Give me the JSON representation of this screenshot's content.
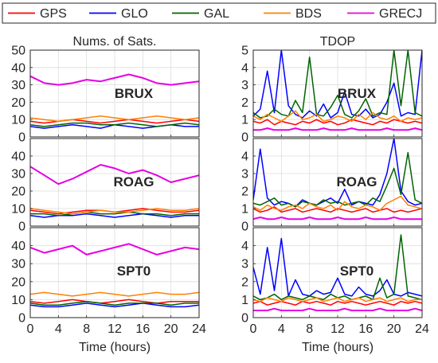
{
  "legend": {
    "items": [
      {
        "label": "GPS",
        "color": "#ff0000"
      },
      {
        "label": "GLO",
        "color": "#0000ff"
      },
      {
        "label": "GAL",
        "color": "#006400"
      },
      {
        "label": "BDS",
        "color": "#ff8000"
      },
      {
        "label": "GRECJ",
        "color": "#e600e6"
      }
    ]
  },
  "chart_data": [
    {
      "type": "line",
      "column": "left",
      "row": 0,
      "title": "Nums. of Sats.",
      "station": "BRUX",
      "xlabel": "",
      "ylabel": "",
      "xlim": [
        0,
        24
      ],
      "ylim": [
        0,
        50
      ],
      "xticks": [
        0,
        4,
        8,
        12,
        16,
        20,
        24
      ],
      "show_xtick_labels": false,
      "yticks": [
        0,
        10,
        20,
        30,
        40,
        50
      ],
      "yticklabels": [
        "0",
        "10",
        "20",
        "30",
        "40",
        "50"
      ],
      "grid": true,
      "x": [
        0,
        2,
        4,
        6,
        8,
        10,
        12,
        14,
        16,
        18,
        20,
        22,
        24
      ],
      "series": [
        {
          "name": "GPS",
          "values": [
            9,
            8,
            9,
            10,
            9,
            8,
            9,
            10,
            9,
            8,
            9,
            10,
            9
          ]
        },
        {
          "name": "GLO",
          "values": [
            6,
            5,
            6,
            7,
            6,
            5,
            7,
            6,
            5,
            6,
            7,
            6,
            6
          ]
        },
        {
          "name": "GAL",
          "values": [
            7,
            6,
            7,
            8,
            8,
            7,
            7,
            8,
            7,
            6,
            7,
            8,
            7
          ]
        },
        {
          "name": "BDS",
          "values": [
            11,
            10,
            9,
            10,
            11,
            12,
            11,
            10,
            11,
            12,
            11,
            10,
            11
          ]
        },
        {
          "name": "GRECJ",
          "values": [
            35,
            31,
            30,
            31,
            33,
            32,
            34,
            36,
            34,
            31,
            30,
            31,
            32
          ]
        }
      ]
    },
    {
      "type": "line",
      "column": "left",
      "row": 1,
      "title": "",
      "station": "ROAG",
      "xlabel": "",
      "ylabel": "",
      "xlim": [
        0,
        24
      ],
      "ylim": [
        0,
        50
      ],
      "xticks": [
        0,
        4,
        8,
        12,
        16,
        20,
        24
      ],
      "show_xtick_labels": false,
      "yticks": [
        0,
        10,
        20,
        30,
        40
      ],
      "yticklabels": [
        "0",
        "10",
        "20",
        "30",
        "40"
      ],
      "grid": true,
      "x": [
        0,
        2,
        4,
        6,
        8,
        10,
        12,
        14,
        16,
        18,
        20,
        22,
        24
      ],
      "series": [
        {
          "name": "GPS",
          "values": [
            9,
            8,
            7,
            8,
            9,
            9,
            8,
            9,
            10,
            9,
            8,
            8,
            9
          ]
        },
        {
          "name": "GLO",
          "values": [
            6,
            5,
            6,
            6,
            7,
            6,
            5,
            6,
            7,
            6,
            5,
            6,
            6
          ]
        },
        {
          "name": "GAL",
          "values": [
            7,
            7,
            6,
            7,
            8,
            7,
            7,
            8,
            7,
            7,
            6,
            7,
            7
          ]
        },
        {
          "name": "BDS",
          "values": [
            10,
            9,
            8,
            7,
            8,
            9,
            8,
            8,
            9,
            10,
            9,
            9,
            10
          ]
        },
        {
          "name": "GRECJ",
          "values": [
            34,
            29,
            24,
            27,
            31,
            35,
            33,
            30,
            32,
            29,
            25,
            27,
            29
          ]
        }
      ]
    },
    {
      "type": "line",
      "column": "left",
      "row": 2,
      "title": "",
      "station": "SPT0",
      "xlabel": "Time (hours)",
      "ylabel": "",
      "xlim": [
        0,
        24
      ],
      "ylim": [
        0,
        50
      ],
      "xticks": [
        0,
        4,
        8,
        12,
        16,
        20,
        24
      ],
      "show_xtick_labels": true,
      "xticklabels": [
        "0",
        "4",
        "8",
        "12",
        "16",
        "20",
        "24"
      ],
      "yticks": [
        0,
        10,
        20,
        30,
        40
      ],
      "yticklabels": [
        "0",
        "10",
        "20",
        "30",
        "40"
      ],
      "grid": true,
      "x": [
        0,
        2,
        4,
        6,
        8,
        10,
        12,
        14,
        16,
        18,
        20,
        22,
        24
      ],
      "series": [
        {
          "name": "GPS",
          "values": [
            9,
            8,
            9,
            10,
            9,
            8,
            9,
            10,
            9,
            8,
            9,
            9,
            9
          ]
        },
        {
          "name": "GLO",
          "values": [
            7,
            6,
            6,
            7,
            8,
            7,
            6,
            7,
            8,
            7,
            6,
            6,
            7
          ]
        },
        {
          "name": "GAL",
          "values": [
            8,
            7,
            7,
            8,
            9,
            8,
            7,
            8,
            8,
            8,
            7,
            8,
            8
          ]
        },
        {
          "name": "BDS",
          "values": [
            13,
            14,
            13,
            12,
            13,
            14,
            13,
            12,
            13,
            14,
            13,
            13,
            14
          ]
        },
        {
          "name": "GRECJ",
          "values": [
            39,
            36,
            38,
            40,
            35,
            37,
            39,
            41,
            38,
            35,
            37,
            39,
            38
          ]
        }
      ]
    },
    {
      "type": "line",
      "column": "right",
      "row": 0,
      "title": "TDOP",
      "station": "BRUX",
      "xlabel": "",
      "ylabel": "",
      "xlim": [
        0,
        24
      ],
      "ylim": [
        0,
        5
      ],
      "xticks": [
        0,
        4,
        8,
        12,
        16,
        20,
        24
      ],
      "show_xtick_labels": false,
      "yticks": [
        0,
        1,
        2,
        3,
        4,
        5
      ],
      "yticklabels": [
        "0",
        "1",
        "2",
        "3",
        "4",
        "5"
      ],
      "grid": true,
      "x": [
        0,
        1,
        2,
        3,
        4,
        5,
        6,
        7,
        8,
        9,
        10,
        11,
        12,
        13,
        14,
        15,
        16,
        17,
        18,
        19,
        20,
        21,
        22,
        23,
        24
      ],
      "series": [
        {
          "name": "GPS",
          "values": [
            0.9,
            0.8,
            1.0,
            0.7,
            0.9,
            0.8,
            0.7,
            0.9,
            0.8,
            1.0,
            0.8,
            0.9,
            0.7,
            0.8,
            1.0,
            0.9,
            0.8,
            0.7,
            0.9,
            0.8,
            1.0,
            0.9,
            0.8,
            0.9,
            0.8
          ]
        },
        {
          "name": "GLO",
          "values": [
            1.2,
            1.6,
            3.8,
            1.4,
            5.0,
            1.8,
            1.3,
            1.1,
            1.5,
            1.2,
            1.9,
            1.1,
            1.4,
            2.6,
            1.3,
            1.2,
            1.6,
            1.1,
            1.3,
            2.0,
            3.1,
            1.2,
            1.4,
            1.3,
            5.0
          ]
        },
        {
          "name": "GAL",
          "values": [
            1.4,
            1.1,
            1.2,
            1.6,
            1.3,
            1.2,
            2.1,
            1.4,
            4.6,
            1.3,
            1.2,
            1.7,
            2.4,
            1.3,
            1.1,
            1.5,
            2.2,
            1.2,
            1.4,
            1.3,
            5.0,
            1.8,
            5.0,
            1.4,
            1.2
          ]
        },
        {
          "name": "BDS",
          "values": [
            1.2,
            1.0,
            1.3,
            1.1,
            0.9,
            1.2,
            1.5,
            1.0,
            1.1,
            1.3,
            0.9,
            1.0,
            1.2,
            1.1,
            0.9,
            1.3,
            1.0,
            1.4,
            1.1,
            1.0,
            1.2,
            0.9,
            1.1,
            1.0,
            1.1
          ]
        },
        {
          "name": "GRECJ",
          "values": [
            0.4,
            0.4,
            0.5,
            0.4,
            0.4,
            0.4,
            0.5,
            0.4,
            0.4,
            0.4,
            0.5,
            0.4,
            0.4,
            0.4,
            0.5,
            0.4,
            0.4,
            0.4,
            0.4,
            0.5,
            0.4,
            0.4,
            0.4,
            0.5,
            0.4
          ]
        }
      ]
    },
    {
      "type": "line",
      "column": "right",
      "row": 1,
      "title": "",
      "station": "ROAG",
      "xlabel": "",
      "ylabel": "",
      "xlim": [
        0,
        24
      ],
      "ylim": [
        0,
        5
      ],
      "xticks": [
        0,
        4,
        8,
        12,
        16,
        20,
        24
      ],
      "show_xtick_labels": false,
      "yticks": [
        0,
        1,
        2,
        3,
        4
      ],
      "yticklabels": [
        "0",
        "1",
        "2",
        "3",
        "4"
      ],
      "grid": true,
      "x": [
        0,
        1,
        2,
        3,
        4,
        5,
        6,
        7,
        8,
        9,
        10,
        11,
        12,
        13,
        14,
        15,
        16,
        17,
        18,
        19,
        20,
        21,
        22,
        23,
        24
      ],
      "series": [
        {
          "name": "GPS",
          "values": [
            1.0,
            0.8,
            0.9,
            1.1,
            0.8,
            0.9,
            1.0,
            0.8,
            0.9,
            1.0,
            0.9,
            0.8,
            1.0,
            0.9,
            0.8,
            0.9,
            1.0,
            0.8,
            0.9,
            1.0,
            0.8,
            0.9,
            0.8,
            0.9,
            1.0
          ]
        },
        {
          "name": "GLO",
          "values": [
            1.5,
            4.4,
            1.6,
            1.2,
            1.4,
            1.3,
            1.1,
            1.5,
            1.3,
            1.2,
            1.4,
            1.6,
            1.3,
            2.1,
            1.2,
            1.4,
            1.3,
            1.2,
            1.8,
            3.0,
            5.0,
            2.0,
            1.4,
            1.2,
            1.3
          ]
        },
        {
          "name": "GAL",
          "values": [
            1.3,
            1.2,
            1.4,
            1.6,
            1.2,
            1.3,
            1.1,
            1.4,
            1.3,
            1.2,
            1.5,
            1.3,
            1.4,
            1.2,
            1.3,
            1.4,
            1.2,
            1.6,
            1.4,
            2.3,
            3.3,
            1.8,
            4.2,
            1.5,
            1.3
          ]
        },
        {
          "name": "BDS",
          "values": [
            1.1,
            0.9,
            1.2,
            1.0,
            0.9,
            1.1,
            1.2,
            1.0,
            1.3,
            1.1,
            1.0,
            1.2,
            0.9,
            1.4,
            1.1,
            1.0,
            1.2,
            1.1,
            0.9,
            1.3,
            1.5,
            1.7,
            1.2,
            1.1,
            1.0
          ]
        },
        {
          "name": "GRECJ",
          "values": [
            0.4,
            0.5,
            0.4,
            0.4,
            0.5,
            0.4,
            0.4,
            0.4,
            0.5,
            0.4,
            0.4,
            0.4,
            0.5,
            0.4,
            0.4,
            0.4,
            0.5,
            0.4,
            0.4,
            0.4,
            0.5,
            0.4,
            0.4,
            0.4,
            0.4
          ]
        }
      ]
    },
    {
      "type": "line",
      "column": "right",
      "row": 2,
      "title": "",
      "station": "SPT0",
      "xlabel": "Time (hours)",
      "ylabel": "",
      "xlim": [
        0,
        24
      ],
      "ylim": [
        0,
        5
      ],
      "xticks": [
        0,
        4,
        8,
        12,
        16,
        20,
        24
      ],
      "show_xtick_labels": true,
      "xticklabels": [
        "0",
        "4",
        "8",
        "12",
        "16",
        "20",
        "24"
      ],
      "yticks": [
        0,
        1,
        2,
        3,
        4
      ],
      "yticklabels": [
        "0",
        "1",
        "2",
        "3",
        "4"
      ],
      "grid": true,
      "x": [
        0,
        1,
        2,
        3,
        4,
        5,
        6,
        7,
        8,
        9,
        10,
        11,
        12,
        13,
        14,
        15,
        16,
        17,
        18,
        19,
        20,
        21,
        22,
        23,
        24
      ],
      "series": [
        {
          "name": "GPS",
          "values": [
            0.8,
            0.9,
            0.7,
            0.8,
            0.9,
            0.8,
            0.7,
            0.9,
            0.8,
            0.9,
            0.8,
            0.7,
            0.9,
            0.8,
            0.9,
            0.8,
            0.7,
            0.8,
            0.9,
            0.8,
            0.7,
            0.9,
            0.8,
            0.9,
            0.8
          ]
        },
        {
          "name": "GLO",
          "values": [
            2.8,
            1.3,
            3.9,
            1.5,
            4.4,
            1.2,
            2.1,
            1.3,
            1.2,
            1.5,
            1.3,
            1.4,
            2.2,
            1.3,
            1.2,
            1.7,
            1.3,
            1.2,
            1.5,
            2.1,
            1.3,
            1.2,
            1.4,
            1.3,
            1.2
          ]
        },
        {
          "name": "GAL",
          "values": [
            1.2,
            1.0,
            1.1,
            1.3,
            1.0,
            1.2,
            1.1,
            1.0,
            1.2,
            1.1,
            1.0,
            1.3,
            1.1,
            1.2,
            1.0,
            1.1,
            1.2,
            1.0,
            2.2,
            1.1,
            1.3,
            4.6,
            1.2,
            1.1,
            1.0
          ]
        },
        {
          "name": "BDS",
          "values": [
            1.0,
            0.9,
            1.1,
            1.0,
            0.9,
            1.1,
            1.0,
            0.9,
            1.0,
            1.1,
            0.9,
            1.0,
            1.1,
            0.9,
            1.0,
            1.1,
            0.9,
            1.0,
            1.1,
            0.9,
            1.0,
            1.1,
            0.9,
            1.0,
            1.0
          ]
        },
        {
          "name": "GRECJ",
          "values": [
            0.4,
            0.4,
            0.4,
            0.5,
            0.4,
            0.4,
            0.4,
            0.4,
            0.5,
            0.4,
            0.4,
            0.4,
            0.4,
            0.5,
            0.4,
            0.4,
            0.4,
            0.4,
            0.5,
            0.4,
            0.4,
            0.4,
            0.4,
            0.5,
            0.4
          ]
        }
      ]
    }
  ]
}
